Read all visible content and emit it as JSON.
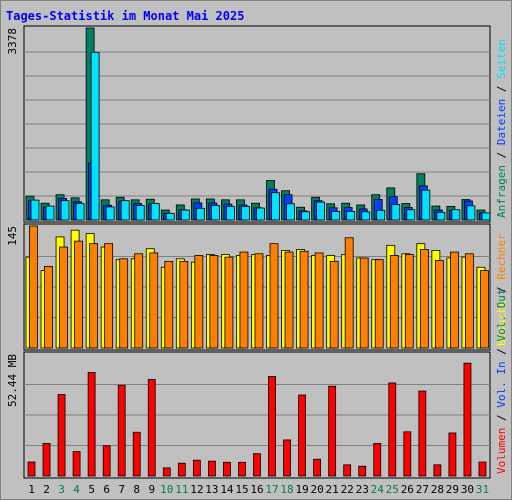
{
  "title": "Tages-Statistik im Monat Mai 2025",
  "colors": {
    "background": "#c0c0c0",
    "panel": "#c0c0c0",
    "grid": "#808080",
    "title": "#0000ff",
    "weekday": "#000000",
    "weekend": "#008040",
    "anfragen": "#008060",
    "dateien": "#0040ff",
    "seiten": "#00e0ff",
    "besuche": "#ffff00",
    "rechner": "#ff8000",
    "volumen": "#ff0000",
    "vol_in": "#0040ff",
    "vol_out": "#008060"
  },
  "chart_data": {
    "type": "bar",
    "title": "Tages-Statistik im Monat Mai 2025",
    "categories": [
      "1",
      "2",
      "3",
      "4",
      "5",
      "6",
      "7",
      "8",
      "9",
      "10",
      "11",
      "12",
      "13",
      "14",
      "15",
      "16",
      "17",
      "18",
      "19",
      "20",
      "21",
      "22",
      "23",
      "24",
      "25",
      "26",
      "27",
      "28",
      "29",
      "30",
      "31"
    ],
    "weekend_days": [
      "3",
      "4",
      "10",
      "11",
      "17",
      "18",
      "24",
      "25",
      "31"
    ],
    "panels": [
      {
        "name": "hits",
        "scale_label": "3378",
        "ylim": [
          0,
          3378
        ],
        "right_legend": [
          {
            "text": "Anfragen",
            "color": "#008060"
          },
          {
            "text": "Dateien",
            "color": "#0040ff"
          },
          {
            "text": "Seiten",
            "color": "#00e0ff"
          }
        ],
        "series": [
          {
            "name": "Anfragen",
            "color": "#008060",
            "values": [
              420,
              295,
              445,
              390,
              3378,
              355,
              400,
              355,
              365,
              175,
              265,
              370,
              370,
              355,
              355,
              295,
              695,
              515,
              225,
              400,
              285,
              295,
              265,
              445,
              565,
              290,
              815,
              245,
              240,
              360,
              175
            ]
          },
          {
            "name": "Dateien",
            "color": "#0040ff",
            "values": [
              340,
              225,
              380,
              320,
              1000,
              260,
              330,
              290,
              285,
              120,
              180,
              300,
              300,
              280,
              265,
              215,
              540,
              445,
              160,
              340,
              215,
              220,
              195,
              360,
              410,
              220,
              600,
              175,
              170,
              335,
              125
            ]
          },
          {
            "name": "Seiten",
            "color": "#00e0ff",
            "values": [
              350,
              245,
              340,
              290,
              2950,
              230,
              340,
              255,
              290,
              115,
              175,
              205,
              255,
              240,
              240,
              210,
              480,
              285,
              145,
              315,
              150,
              150,
              145,
              170,
              270,
              180,
              525,
              135,
              180,
              250,
              125
            ]
          }
        ]
      },
      {
        "name": "visits",
        "scale_label": "145",
        "ylim": [
          0,
          145
        ],
        "right_legend": [
          {
            "text": "Besuche",
            "color": "#ffff00"
          },
          {
            "text": "Rechner",
            "color": "#ff8000"
          }
        ],
        "series": [
          {
            "name": "Besuche",
            "color": "#ffff00",
            "values": [
              108,
              92,
              132,
              140,
              136,
              120,
              105,
              106,
              118,
              96,
              106,
              102,
              111,
              111,
              110,
              111,
              110,
              116,
              117,
              110,
              110,
              111,
              107,
              105,
              122,
              112,
              124,
              116,
              107,
              108,
              96
            ]
          },
          {
            "name": "Rechner",
            "color": "#ff8000",
            "values": [
              145,
              97,
              120,
              127,
              124,
              124,
              106,
              112,
              113,
              103,
              103,
              110,
              110,
              108,
              114,
              112,
              124,
              114,
              115,
              113,
              103,
              131,
              107,
              105,
              110,
              111,
              117,
              104,
              114,
              112,
              92
            ]
          }
        ]
      },
      {
        "name": "volume",
        "scale_label": "52.44 MB",
        "ylim": [
          0,
          52.44
        ],
        "right_legend": [
          {
            "text": "Volumen",
            "color": "#ff0000"
          },
          {
            "text": "Vol. In",
            "color": "#0040ff"
          },
          {
            "text": "Vol. Out",
            "color": "#008060"
          }
        ],
        "series": [
          {
            "name": "Volumen",
            "color": "#ff0000",
            "values": [
              6.0,
              14.0,
              35.0,
              10.5,
              44.5,
              13.0,
              39.0,
              18.8,
              41.5,
              3.5,
              5.5,
              6.8,
              6.4,
              5.9,
              5.9,
              9.6,
              42.8,
              15.5,
              34.8,
              7.2,
              38.6,
              4.8,
              4.2,
              14.0,
              40.0,
              19.0,
              36.5,
              4.8,
              18.5,
              48.5,
              6.0
            ]
          }
        ]
      }
    ]
  }
}
